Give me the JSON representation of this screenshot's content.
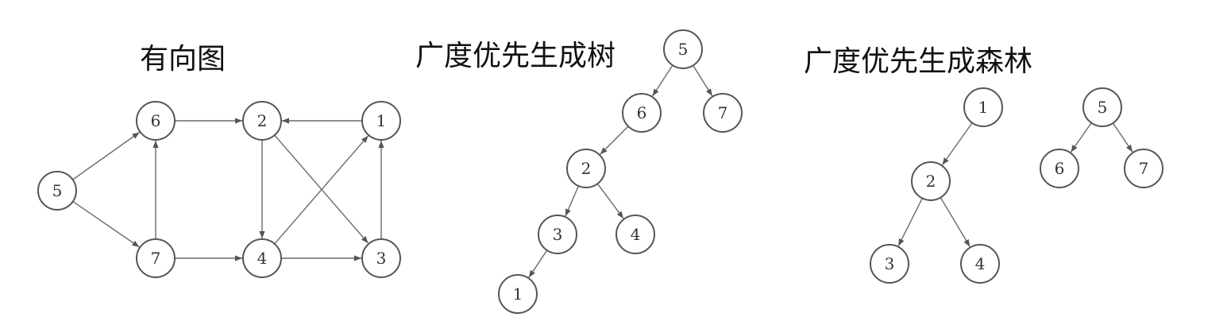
{
  "colors": {
    "stroke": "#6a6a6a",
    "node_fill": "#ffffff",
    "text": "#111111"
  },
  "diagrams": {
    "digraph": {
      "title": "有向图",
      "nodes": [
        "5",
        "6",
        "7",
        "2",
        "4",
        "1",
        "3"
      ],
      "edges": [
        [
          "5",
          "6"
        ],
        [
          "5",
          "7"
        ],
        [
          "7",
          "6"
        ],
        [
          "6",
          "2"
        ],
        [
          "1",
          "2"
        ],
        [
          "2",
          "4"
        ],
        [
          "2",
          "3"
        ],
        [
          "7",
          "4"
        ],
        [
          "4",
          "3"
        ],
        [
          "4",
          "1"
        ],
        [
          "3",
          "1"
        ]
      ]
    },
    "bfs_tree": {
      "title": "广度优先生成树",
      "nodes": [
        "5",
        "6",
        "7",
        "2",
        "3",
        "4",
        "1"
      ],
      "edges": [
        [
          "5",
          "6"
        ],
        [
          "5",
          "7"
        ],
        [
          "6",
          "2"
        ],
        [
          "2",
          "3"
        ],
        [
          "2",
          "4"
        ],
        [
          "3",
          "1"
        ]
      ]
    },
    "bfs_forest": {
      "title": "广度优先生成森林",
      "nodes": [
        "1",
        "2",
        "3",
        "4",
        "5",
        "6",
        "7"
      ],
      "edges": [
        [
          "1",
          "2"
        ],
        [
          "2",
          "3"
        ],
        [
          "2",
          "4"
        ],
        [
          "5",
          "6"
        ],
        [
          "5",
          "7"
        ]
      ]
    }
  }
}
